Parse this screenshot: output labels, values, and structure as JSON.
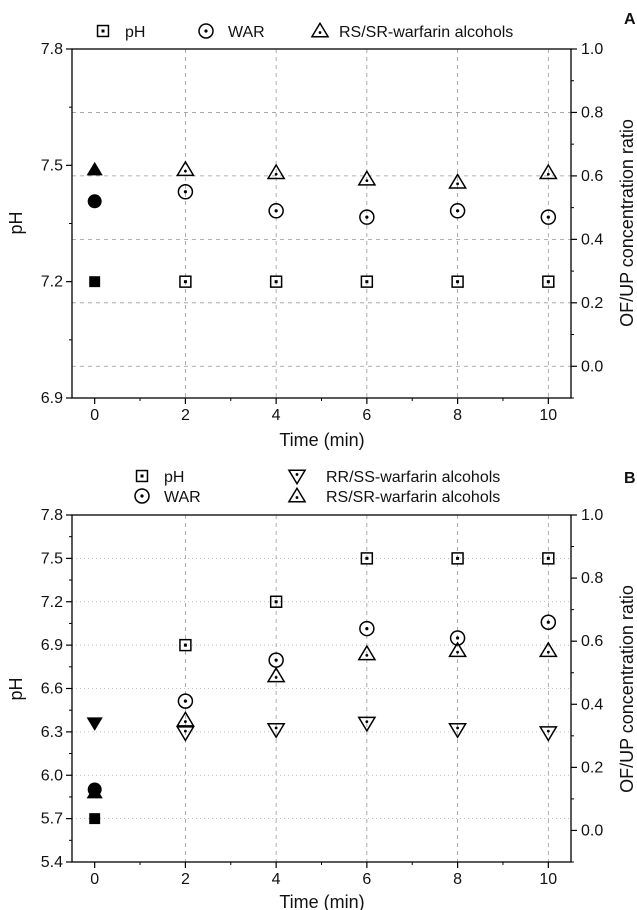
{
  "chart_data": [
    {
      "panel_label": "A",
      "type": "scatter",
      "xlabel": "Time (min)",
      "ylabel": "pH",
      "y2label": "OF/UP concentration ratio",
      "xlim": [
        -0.5,
        10.5
      ],
      "ylim": [
        6.9,
        7.8
      ],
      "y2lim": [
        -0.1,
        1.0
      ],
      "x_ticks": [
        0,
        2,
        4,
        6,
        8,
        10
      ],
      "y_ticks": [
        6.9,
        7.2,
        7.5,
        7.8
      ],
      "y_tick_labels": [
        "6.9",
        "7.2",
        "7.5",
        "7.8"
      ],
      "y2_ticks": [
        0.0,
        0.2,
        0.4,
        0.6,
        0.8,
        1.0
      ],
      "y2_tick_labels": [
        "0.0",
        "0.2",
        "0.4",
        "0.6",
        "0.8",
        "1.0"
      ],
      "grid": true,
      "legend_placement": "top",
      "legend": [
        {
          "series_index": 0,
          "name": "pH",
          "marker": "square"
        },
        {
          "series_index": 1,
          "name": "WAR",
          "marker": "circle"
        },
        {
          "series_index": 2,
          "name": "RS/SR-warfarin alcohols",
          "marker": "triangle-up"
        }
      ],
      "series": [
        {
          "name": "pH",
          "axis": "left",
          "marker": "square",
          "x": [
            0,
            2,
            4,
            6,
            8,
            10
          ],
          "y": [
            7.2,
            7.2,
            7.2,
            7.2,
            7.2,
            7.2
          ],
          "filled": [
            true,
            false,
            false,
            false,
            false,
            false
          ]
        },
        {
          "name": "WAR",
          "axis": "right",
          "marker": "circle",
          "x": [
            0,
            2,
            4,
            6,
            8,
            10
          ],
          "y": [
            0.52,
            0.55,
            0.49,
            0.47,
            0.49,
            0.47
          ],
          "filled": [
            true,
            false,
            false,
            false,
            false,
            false
          ]
        },
        {
          "name": "RS/SR-warfarin alcohols",
          "axis": "right",
          "marker": "triangle-up",
          "x": [
            0,
            2,
            4,
            6,
            8,
            10
          ],
          "y": [
            0.62,
            0.62,
            0.61,
            0.59,
            0.58,
            0.61
          ],
          "filled": [
            true,
            false,
            false,
            false,
            false,
            false
          ]
        }
      ]
    },
    {
      "panel_label": "B",
      "type": "scatter",
      "xlabel": "Time (min)",
      "ylabel": "pH",
      "y2label": "OF/UP concentration ratio",
      "xlim": [
        -0.5,
        10.5
      ],
      "ylim": [
        5.4,
        7.8
      ],
      "y2lim": [
        -0.1,
        1.0
      ],
      "x_ticks": [
        0,
        2,
        4,
        6,
        8,
        10
      ],
      "y_ticks": [
        5.4,
        5.7,
        6.0,
        6.3,
        6.6,
        6.9,
        7.2,
        7.5,
        7.8
      ],
      "y_tick_labels": [
        "5.4",
        "5.7",
        "6.0",
        "6.3",
        "6.6",
        "6.9",
        "7.2",
        "7.5",
        "7.8"
      ],
      "y2_ticks": [
        0.0,
        0.2,
        0.4,
        0.6,
        0.8,
        1.0
      ],
      "y2_tick_labels": [
        "0.0",
        "0.2",
        "0.4",
        "0.6",
        "0.8",
        "1.0"
      ],
      "grid": true,
      "legend_placement": "top",
      "legend": [
        {
          "series_index": 0,
          "name": "pH",
          "marker": "square"
        },
        {
          "series_index": 1,
          "name": "WAR",
          "marker": "circle"
        },
        {
          "series_index": 2,
          "name": "RR/SS-warfarin alcohols",
          "marker": "triangle-down"
        },
        {
          "series_index": 3,
          "name": "RS/SR-warfarin alcohols",
          "marker": "triangle-up"
        }
      ],
      "series": [
        {
          "name": "pH",
          "axis": "left",
          "marker": "square",
          "x": [
            0,
            2,
            4,
            6,
            8,
            10
          ],
          "y": [
            5.7,
            6.9,
            7.2,
            7.5,
            7.5,
            7.5
          ],
          "filled": [
            true,
            false,
            false,
            false,
            false,
            false
          ]
        },
        {
          "name": "WAR",
          "axis": "right",
          "marker": "circle",
          "x": [
            0,
            2,
            4,
            6,
            8,
            10
          ],
          "y": [
            0.13,
            0.41,
            0.54,
            0.64,
            0.61,
            0.66
          ],
          "filled": [
            true,
            false,
            false,
            false,
            false,
            false
          ]
        },
        {
          "name": "RR/SS-warfarin alcohols",
          "axis": "right",
          "marker": "triangle-down",
          "x": [
            0,
            2,
            4,
            6,
            8,
            10
          ],
          "y": [
            0.34,
            0.31,
            0.32,
            0.34,
            0.32,
            0.31
          ],
          "filled": [
            true,
            false,
            false,
            false,
            false,
            false
          ]
        },
        {
          "name": "RS/SR-warfarin alcohols",
          "axis": "right",
          "marker": "triangle-up",
          "x": [
            0,
            2,
            4,
            6,
            8,
            10
          ],
          "y": [
            0.12,
            0.35,
            0.49,
            0.56,
            0.57,
            0.57
          ],
          "filled": [
            true,
            false,
            false,
            false,
            false,
            false
          ]
        }
      ]
    }
  ]
}
